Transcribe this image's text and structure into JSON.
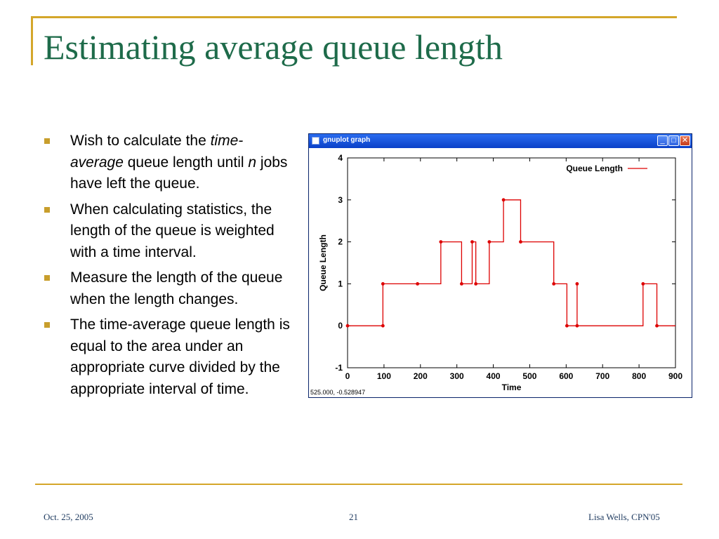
{
  "slide": {
    "title": "Estimating average queue length",
    "bullets": [
      {
        "pre": "Wish to calculate the ",
        "em1": "time-average",
        "mid": " queue length until ",
        "em2": "n",
        "post": " jobs have left the queue."
      },
      {
        "text": "When calculating statistics, the length of the queue is weighted with a time interval."
      },
      {
        "text": "Measure the length of the queue when the length changes."
      },
      {
        "text": "The time-average queue length is equal to the area under an appropriate curve divided by the appropriate interval of time."
      }
    ],
    "footer": {
      "date": "Oct. 25, 2005",
      "page": "21",
      "author": "Lisa Wells, CPN'05"
    }
  },
  "window": {
    "title": "gnuplot graph",
    "buttons": {
      "minimize": "_",
      "maximize": "□",
      "close": "✕"
    },
    "icons": [
      "app-icon",
      "minimize-icon",
      "maximize-icon",
      "close-icon"
    ],
    "status_coords": "525.000, -0.528947"
  },
  "colors": {
    "accent": "#d4a62a",
    "title": "#1e6b4a",
    "series": "#dd0000",
    "titlebar": "#0a40c8"
  },
  "chart_data": {
    "type": "line",
    "title": "",
    "xlabel": "Time",
    "ylabel": "Queue Length",
    "xlim": [
      0,
      900
    ],
    "ylim": [
      -1,
      4
    ],
    "xticks": [
      0,
      100,
      200,
      300,
      400,
      500,
      600,
      700,
      800,
      900
    ],
    "yticks": [
      -1,
      0,
      1,
      2,
      3,
      4
    ],
    "legend_position": "top-right",
    "grid": false,
    "series": [
      {
        "name": "Queue Length",
        "step": true,
        "points": [
          [
            0,
            0
          ],
          [
            97,
            0
          ],
          [
            97,
            1
          ],
          [
            192,
            1
          ],
          [
            256,
            2
          ],
          [
            313,
            1
          ],
          [
            342,
            2
          ],
          [
            352,
            1
          ],
          [
            389,
            2
          ],
          [
            428,
            3
          ],
          [
            475,
            2
          ],
          [
            566,
            1
          ],
          [
            602,
            0
          ],
          [
            630,
            1
          ],
          [
            630,
            0
          ],
          [
            811,
            1
          ],
          [
            849,
            0
          ]
        ],
        "end_x": 900
      }
    ]
  }
}
